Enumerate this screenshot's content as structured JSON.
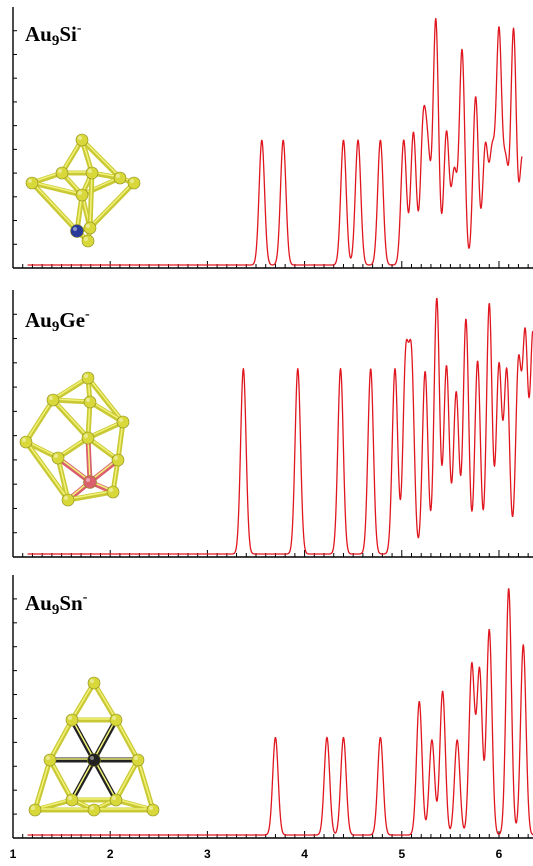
{
  "chart_data": [
    {
      "type": "line",
      "title": "Au9Si-",
      "label_parts": {
        "base": "Au",
        "sub": "9",
        "elem": "Si",
        "sup": "-"
      },
      "xlim": [
        1.0,
        6.35
      ],
      "xticks": [
        1,
        2,
        3,
        4,
        5,
        6
      ],
      "line_color": "#e0161e",
      "cluster_colors": {
        "gold": "#d8d83a",
        "dopant": "#2a3a9a"
      },
      "peaks": [
        {
          "x": 3.56,
          "y": 0.49
        },
        {
          "x": 3.78,
          "y": 0.49
        },
        {
          "x": 4.4,
          "y": 0.49
        },
        {
          "x": 4.55,
          "y": 0.49
        },
        {
          "x": 4.78,
          "y": 0.49
        },
        {
          "x": 5.02,
          "y": 0.49
        },
        {
          "x": 5.12,
          "y": 0.52
        },
        {
          "x": 5.22,
          "y": 0.52
        },
        {
          "x": 5.27,
          "y": 0.38
        },
        {
          "x": 5.35,
          "y": 0.96
        },
        {
          "x": 5.46,
          "y": 0.52
        },
        {
          "x": 5.54,
          "y": 0.36
        },
        {
          "x": 5.62,
          "y": 0.84
        },
        {
          "x": 5.76,
          "y": 0.66
        },
        {
          "x": 5.86,
          "y": 0.46
        },
        {
          "x": 5.93,
          "y": 0.42
        },
        {
          "x": 6.0,
          "y": 0.9
        },
        {
          "x": 6.07,
          "y": 0.38
        },
        {
          "x": 6.15,
          "y": 0.92
        },
        {
          "x": 6.24,
          "y": 0.42
        }
      ],
      "x_end": 6.24
    },
    {
      "type": "line",
      "title": "Au9Ge-",
      "label_parts": {
        "base": "Au",
        "sub": "9",
        "elem": "Ge",
        "sup": "-"
      },
      "xlim": [
        1.0,
        6.35
      ],
      "xticks": [
        1,
        2,
        3,
        4,
        5,
        6
      ],
      "line_color": "#e0161e",
      "cluster_colors": {
        "gold": "#d8d83a",
        "dopant": "#d9606c"
      },
      "peaks": [
        {
          "x": 3.37,
          "y": 0.71
        },
        {
          "x": 3.93,
          "y": 0.71
        },
        {
          "x": 4.37,
          "y": 0.71
        },
        {
          "x": 4.68,
          "y": 0.71
        },
        {
          "x": 4.93,
          "y": 0.71
        },
        {
          "x": 5.04,
          "y": 0.72
        },
        {
          "x": 5.1,
          "y": 0.72
        },
        {
          "x": 5.24,
          "y": 0.7
        },
        {
          "x": 5.36,
          "y": 0.98
        },
        {
          "x": 5.46,
          "y": 0.72
        },
        {
          "x": 5.56,
          "y": 0.62
        },
        {
          "x": 5.66,
          "y": 0.9
        },
        {
          "x": 5.78,
          "y": 0.74
        },
        {
          "x": 5.9,
          "y": 0.96
        },
        {
          "x": 6.0,
          "y": 0.72
        },
        {
          "x": 6.08,
          "y": 0.7
        },
        {
          "x": 6.2,
          "y": 0.72
        },
        {
          "x": 6.27,
          "y": 0.82
        },
        {
          "x": 6.35,
          "y": 0.84
        }
      ],
      "x_end": 6.35
    },
    {
      "type": "line",
      "title": "Au9Sn-",
      "label_parts": {
        "base": "Au",
        "sub": "9",
        "elem": "Sn",
        "sup": "-"
      },
      "xlim": [
        1.0,
        6.35
      ],
      "xticks": [
        1,
        2,
        3,
        4,
        5,
        6
      ],
      "line_color": "#e0161e",
      "cluster_colors": {
        "gold": "#d8d83a",
        "dopant": "#222222"
      },
      "peaks": [
        {
          "x": 3.7,
          "y": 0.38
        },
        {
          "x": 4.23,
          "y": 0.38
        },
        {
          "x": 4.4,
          "y": 0.38
        },
        {
          "x": 4.78,
          "y": 0.38
        },
        {
          "x": 5.18,
          "y": 0.52
        },
        {
          "x": 5.31,
          "y": 0.37
        },
        {
          "x": 5.42,
          "y": 0.56
        },
        {
          "x": 5.57,
          "y": 0.37
        },
        {
          "x": 5.72,
          "y": 0.66
        },
        {
          "x": 5.8,
          "y": 0.64
        },
        {
          "x": 5.9,
          "y": 0.8
        },
        {
          "x": 6.1,
          "y": 0.96
        },
        {
          "x": 6.25,
          "y": 0.74
        }
      ],
      "x_end": 6.35
    }
  ]
}
